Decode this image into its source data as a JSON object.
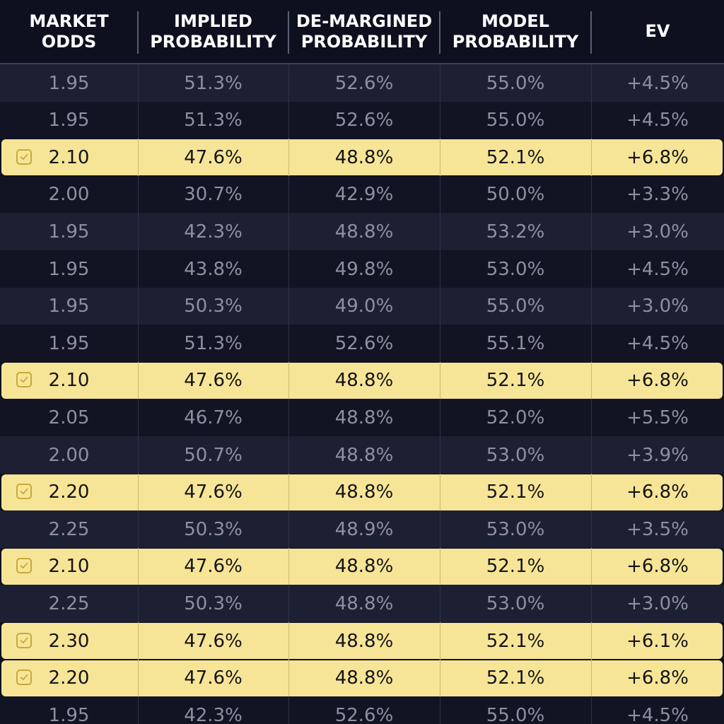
{
  "columns": [
    {
      "line1": "MARKET",
      "line2": "ODDS"
    },
    {
      "line1": "IMPLIED",
      "line2": "PROBABILITY"
    },
    {
      "line1": "DE-MARGINED",
      "line2": "PROBABILITY"
    },
    {
      "line1": "MODEL",
      "line2": "PROBABILITY"
    },
    {
      "line1": "EV",
      "line2": ""
    }
  ],
  "rows": [
    {
      "selected": false,
      "cells": [
        "1.95",
        "51.3%",
        "52.6%",
        "55.0%",
        "+4.5%"
      ]
    },
    {
      "selected": false,
      "cells": [
        "1.95",
        "51.3%",
        "52.6%",
        "55.0%",
        "+4.5%"
      ]
    },
    {
      "selected": true,
      "cells": [
        "2.10",
        "47.6%",
        "48.8%",
        "52.1%",
        "+6.8%"
      ]
    },
    {
      "selected": false,
      "cells": [
        "2.00",
        "30.7%",
        "42.9%",
        "50.0%",
        "+3.3%"
      ]
    },
    {
      "selected": false,
      "cells": [
        "1.95",
        "42.3%",
        "48.8%",
        "53.2%",
        "+3.0%"
      ]
    },
    {
      "selected": false,
      "cells": [
        "1.95",
        "43.8%",
        "49.8%",
        "53.0%",
        "+4.5%"
      ]
    },
    {
      "selected": false,
      "cells": [
        "1.95",
        "50.3%",
        "49.0%",
        "55.0%",
        "+3.0%"
      ]
    },
    {
      "selected": false,
      "cells": [
        "1.95",
        "51.3%",
        "52.6%",
        "55.1%",
        "+4.5%"
      ]
    },
    {
      "selected": true,
      "cells": [
        "2.10",
        "47.6%",
        "48.8%",
        "52.1%",
        "+6.8%"
      ]
    },
    {
      "selected": false,
      "cells": [
        "2.05",
        "46.7%",
        "48.8%",
        "52.0%",
        "+5.5%"
      ]
    },
    {
      "selected": false,
      "cells": [
        "2.00",
        "50.7%",
        "48.8%",
        "53.0%",
        "+3.9%"
      ]
    },
    {
      "selected": true,
      "cells": [
        "2.20",
        "47.6%",
        "48.8%",
        "52.1%",
        "+6.8%"
      ]
    },
    {
      "selected": false,
      "cells": [
        "2.25",
        "50.3%",
        "48.9%",
        "53.0%",
        "+3.5%"
      ]
    },
    {
      "selected": true,
      "cells": [
        "2.10",
        "47.6%",
        "48.8%",
        "52.1%",
        "+6.8%"
      ]
    },
    {
      "selected": false,
      "cells": [
        "2.25",
        "50.3%",
        "48.8%",
        "53.0%",
        "+3.0%"
      ]
    },
    {
      "selected": true,
      "cells": [
        "2.30",
        "47.6%",
        "48.8%",
        "52.1%",
        "+6.1%"
      ]
    },
    {
      "selected": true,
      "cells": [
        "2.20",
        "47.6%",
        "48.8%",
        "52.1%",
        "+6.8%"
      ]
    },
    {
      "selected": false,
      "cells": [
        "1.95",
        "42.3%",
        "52.6%",
        "55.0%",
        "+4.5%"
      ]
    }
  ],
  "colors": {
    "highlight": "#f7e597",
    "checkbox_border": "#c8a93a",
    "row_dark": "#121424",
    "row_light": "#1d2033",
    "header_text": "#ffffff",
    "muted_text": "#8d90a3"
  },
  "icons": {
    "selected_row": "checkbox-checked-icon"
  }
}
